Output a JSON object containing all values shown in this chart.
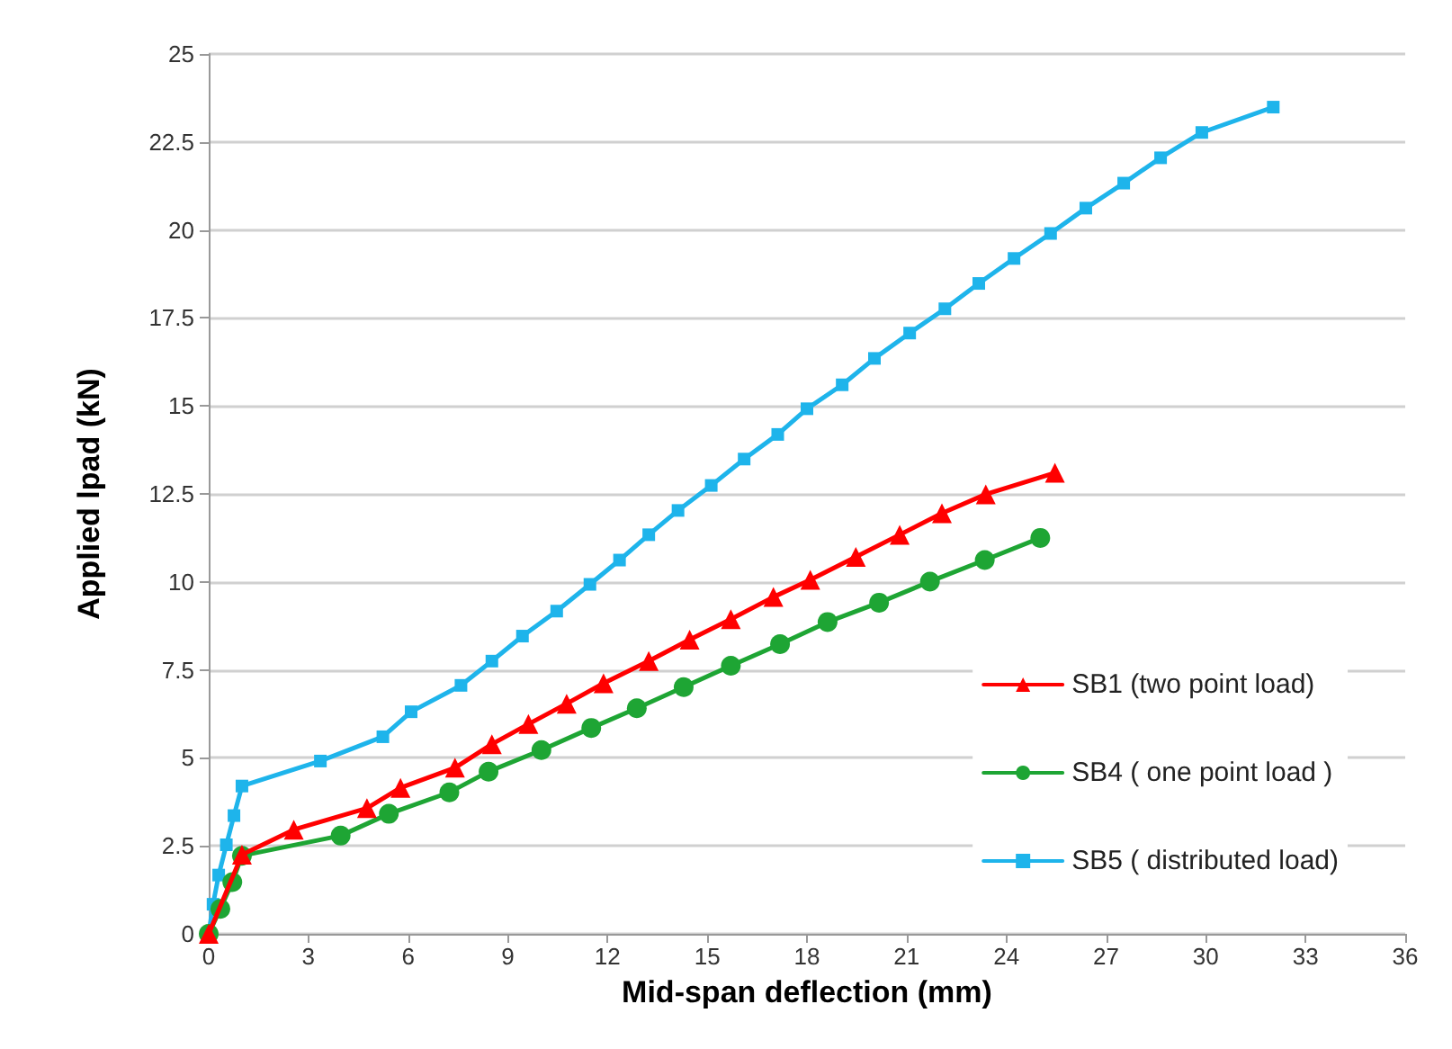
{
  "chart_data": {
    "type": "line",
    "xlabel": "Mid-span deflection (mm)",
    "ylabel": "Applied lpad (kN)",
    "xlim": [
      0,
      36
    ],
    "xticks": [
      0,
      3,
      6,
      9,
      12,
      15,
      18,
      21,
      24,
      27,
      30,
      33,
      36
    ],
    "ylim": [
      0,
      25
    ],
    "yticks": [
      0,
      2.5,
      5,
      7.5,
      10,
      12.5,
      15,
      17.5,
      20,
      22.5,
      25
    ],
    "grid": "y",
    "legend": "right",
    "line_style": "solid",
    "series": [
      {
        "name": "SB1 (two point load)",
        "color": "#ff0000",
        "marker": "triangle",
        "x": [
          0,
          1.0,
          2.56,
          4.76,
          5.77,
          7.41,
          8.52,
          9.62,
          10.77,
          11.88,
          13.24,
          14.47,
          15.71,
          16.99,
          18.1,
          19.47,
          20.79,
          22.06,
          23.38,
          25.46
        ],
        "values": [
          0,
          2.25,
          2.96,
          3.57,
          4.15,
          4.72,
          5.39,
          5.96,
          6.54,
          7.12,
          7.75,
          8.36,
          8.94,
          9.57,
          10.06,
          10.71,
          11.34,
          11.95,
          12.49,
          13.1
        ]
      },
      {
        "name": "SB4 ( one point load )",
        "color": "#1ea534",
        "marker": "circle",
        "x": [
          0,
          0.35,
          0.71,
          1.0,
          3.97,
          5.42,
          7.24,
          8.42,
          10.01,
          11.51,
          12.88,
          14.29,
          15.71,
          17.19,
          18.62,
          20.17,
          21.7,
          23.35,
          25.02
        ],
        "values": [
          0,
          0.71,
          1.47,
          2.22,
          2.79,
          3.41,
          4.02,
          4.61,
          5.22,
          5.85,
          6.41,
          7.01,
          7.62,
          8.23,
          8.86,
          9.41,
          10.01,
          10.62,
          11.25
        ]
      },
      {
        "name": "SB5 ( distributed load)",
        "color": "#1eb4eb",
        "marker": "square",
        "x": [
          0,
          0.13,
          0.3,
          0.53,
          0.76,
          1.0,
          3.36,
          5.24,
          6.09,
          7.59,
          8.52,
          9.44,
          10.47,
          11.47,
          12.36,
          13.24,
          14.12,
          15.12,
          16.11,
          17.12,
          18.0,
          19.06,
          20.03,
          21.09,
          22.15,
          23.17,
          24.23,
          25.33,
          26.39,
          27.53,
          28.64,
          29.88,
          32.03
        ],
        "values": [
          0,
          0.84,
          1.67,
          2.53,
          3.36,
          4.2,
          4.91,
          5.6,
          6.31,
          7.06,
          7.75,
          8.46,
          9.17,
          9.93,
          10.62,
          11.34,
          12.03,
          12.74,
          13.49,
          14.19,
          14.92,
          15.6,
          16.35,
          17.07,
          17.76,
          18.48,
          19.19,
          19.9,
          20.62,
          21.33,
          22.05,
          22.77,
          23.49
        ]
      }
    ]
  }
}
